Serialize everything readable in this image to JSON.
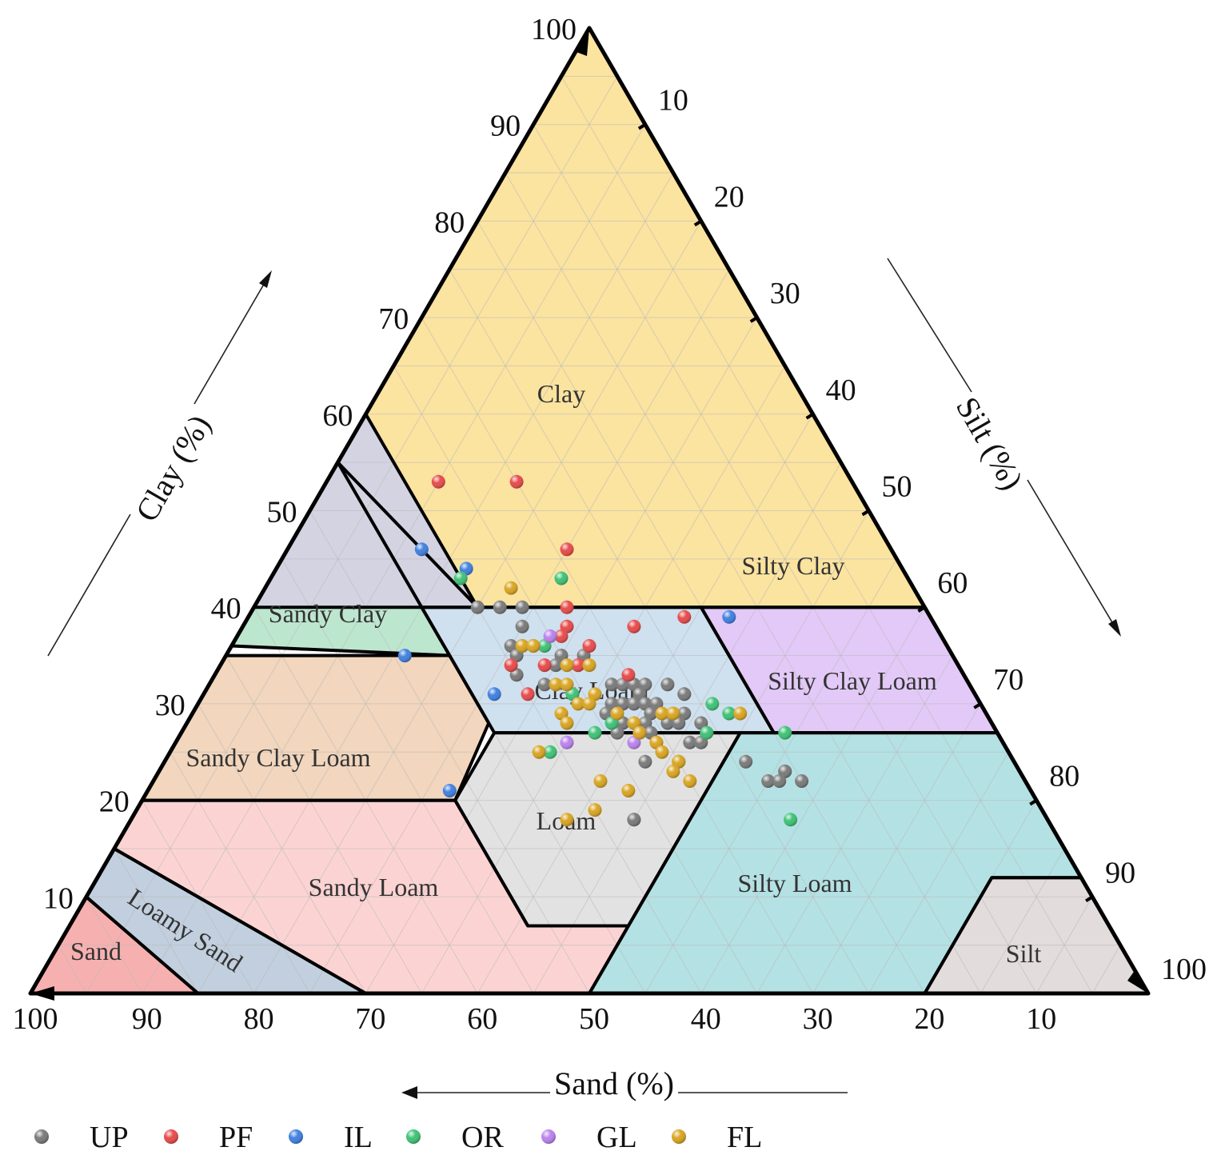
{
  "chart_data": {
    "type": "scatter",
    "subtype": "ternary-soil-texture",
    "axes": {
      "clay": {
        "label": "Clay (%)",
        "ticks": [
          "10",
          "20",
          "30",
          "40",
          "50",
          "60",
          "70",
          "80",
          "90",
          "100"
        ]
      },
      "silt": {
        "label": "Silt (%)",
        "ticks": [
          "10",
          "20",
          "30",
          "40",
          "50",
          "60",
          "70",
          "80",
          "90",
          "100"
        ]
      },
      "sand": {
        "label": "Sand (%)",
        "ticks": [
          "100",
          "90",
          "80",
          "70",
          "60",
          "50",
          "40",
          "30",
          "20",
          "10"
        ]
      }
    },
    "grid": true,
    "legend_position": "bottom",
    "regions": [
      {
        "name": "Clay",
        "color": "#fbe3a0",
        "polygon": [
          [
            55,
            45,
            0
          ],
          [
            100,
            0,
            0
          ],
          [
            40,
            0,
            60
          ],
          [
            40,
            15,
            45
          ],
          [
            40,
            40,
            20
          ]
        ]
      },
      {
        "name": "Sandy Clay",
        "color": "#bde6cf",
        "polygon": [
          [
            35,
            45,
            20
          ],
          [
            36,
            64,
            0
          ],
          [
            55,
            45,
            0
          ],
          [
            36,
            45,
            19
          ]
        ]
      },
      {
        "name": "Silty Clay",
        "color": "#d4d3e2",
        "polygon": [
          [
            40,
            40,
            20
          ],
          [
            60,
            40,
            0
          ],
          [
            40,
            60,
            0
          ]
        ]
      },
      {
        "name": "Sandy Clay Loam",
        "color": "#f2d6bd",
        "polygon": [
          [
            20,
            80,
            0
          ],
          [
            35,
            65,
            0
          ],
          [
            35,
            45,
            20
          ],
          [
            28,
            45,
            27
          ],
          [
            20,
            52,
            28
          ]
        ]
      },
      {
        "name": "Clay Loam",
        "color": "#cfe0ef",
        "polygon": [
          [
            27,
            45,
            28
          ],
          [
            40,
            45,
            15
          ],
          [
            40,
            20,
            40
          ],
          [
            27,
            20,
            53
          ]
        ]
      },
      {
        "name": "Silty Clay Loam",
        "color": "#e2c9f7",
        "polygon": [
          [
            27,
            20,
            53
          ],
          [
            40,
            20,
            40
          ],
          [
            40,
            0,
            60
          ],
          [
            27,
            0,
            73
          ]
        ]
      },
      {
        "name": "Loam",
        "color": "#e2e2e2",
        "polygon": [
          [
            27,
            45,
            28
          ],
          [
            27,
            23,
            50
          ],
          [
            7,
            43,
            50
          ],
          [
            7,
            52,
            41
          ],
          [
            20,
            52,
            28
          ]
        ]
      },
      {
        "name": "Silty Loam",
        "color": "#b4e1e4",
        "polygon": [
          [
            27,
            23,
            50
          ],
          [
            27,
            0,
            73
          ],
          [
            12,
            0,
            88
          ],
          [
            12,
            8,
            80
          ],
          [
            0,
            20,
            80
          ],
          [
            0,
            50,
            50
          ],
          [
            7,
            43,
            50
          ]
        ]
      },
      {
        "name": "Silt",
        "color": "#e2dcdc",
        "polygon": [
          [
            12,
            8,
            80
          ],
          [
            12,
            0,
            88
          ],
          [
            0,
            0,
            100
          ],
          [
            0,
            20,
            80
          ]
        ]
      },
      {
        "name": "Sandy Loam",
        "color": "#fcd3d3",
        "polygon": [
          [
            20,
            80,
            0
          ],
          [
            20,
            52,
            28
          ],
          [
            7,
            52,
            41
          ],
          [
            7,
            43,
            50
          ],
          [
            0,
            50,
            50
          ],
          [
            0,
            70,
            30
          ],
          [
            15,
            85,
            0
          ]
        ]
      },
      {
        "name": "Loamy Sand",
        "color": "#c1cfde",
        "polygon": [
          [
            15,
            85,
            0
          ],
          [
            0,
            70,
            30
          ],
          [
            0,
            85,
            15
          ],
          [
            10,
            90,
            0
          ]
        ]
      },
      {
        "name": "Sand",
        "color": "#f6b0b0",
        "polygon": [
          [
            10,
            90,
            0
          ],
          [
            0,
            85,
            15
          ],
          [
            0,
            100,
            0
          ]
        ]
      }
    ],
    "region_labels": [
      "Clay",
      "Sandy Clay",
      "Silty Clay",
      "Sandy Clay Loam",
      "Clay Loam",
      "Silty Clay Loam",
      "Loam",
      "Silty Loam",
      "Silt",
      "Sandy Loam",
      "Loamy Sand",
      "Sand"
    ],
    "series": [
      {
        "name": "UP",
        "color": "#7a7a7a",
        "points": [
          [
            40,
            40
          ],
          [
            40,
            38
          ],
          [
            40,
            36
          ],
          [
            38,
            37
          ],
          [
            36,
            39
          ],
          [
            36,
            38
          ],
          [
            36,
            37
          ],
          [
            35,
            39
          ],
          [
            35,
            35
          ],
          [
            35,
            33
          ],
          [
            34,
            36
          ],
          [
            34,
            34
          ],
          [
            33,
            40
          ],
          [
            32,
            38
          ],
          [
            32,
            32
          ],
          [
            32,
            31
          ],
          [
            32,
            30
          ],
          [
            32,
            29
          ],
          [
            32,
            27
          ],
          [
            31,
            30
          ],
          [
            31,
            26
          ],
          [
            31,
            26
          ],
          [
            30,
            33
          ],
          [
            30,
            32
          ],
          [
            30,
            31
          ],
          [
            30,
            30
          ],
          [
            30,
            29
          ],
          [
            29,
            34
          ],
          [
            29,
            30
          ],
          [
            29,
            28
          ],
          [
            29,
            27
          ],
          [
            28,
            33
          ],
          [
            28,
            31
          ],
          [
            28,
            29
          ],
          [
            28,
            28
          ],
          [
            28,
            26
          ],
          [
            27,
            34
          ],
          [
            27,
            32
          ],
          [
            27,
            31
          ],
          [
            27,
            26
          ],
          [
            26,
            28
          ],
          [
            26,
            27
          ],
          [
            24,
            33
          ],
          [
            24,
            30
          ],
          [
            24,
            24
          ],
          [
            23,
            21
          ],
          [
            23,
            21
          ],
          [
            22,
            23
          ],
          [
            22,
            22
          ],
          [
            22,
            20
          ],
          [
            18,
            37
          ],
          [
            18,
            37
          ]
        ]
      },
      {
        "name": "PF",
        "color": "#e84a4a",
        "points": [
          [
            53,
            30
          ],
          [
            53,
            37
          ],
          [
            46,
            29
          ],
          [
            40,
            32
          ],
          [
            39,
            22
          ],
          [
            38,
            33
          ],
          [
            38,
            27
          ],
          [
            37,
            34
          ],
          [
            36,
            32
          ],
          [
            34,
            40
          ],
          [
            34,
            37
          ],
          [
            34,
            34
          ],
          [
            33,
            30
          ],
          [
            31,
            40
          ]
        ]
      },
      {
        "name": "IL",
        "color": "#3f80e0",
        "points": [
          [
            46,
            42
          ],
          [
            44,
            39
          ],
          [
            39,
            18
          ],
          [
            35,
            49
          ],
          [
            31,
            43
          ],
          [
            21,
            52
          ]
        ]
      },
      {
        "name": "OR",
        "color": "#3ec276",
        "points": [
          [
            43,
            31
          ],
          [
            43,
            40
          ],
          [
            36,
            36
          ],
          [
            31,
            36
          ],
          [
            30,
            24
          ],
          [
            29,
            23
          ],
          [
            28,
            34
          ],
          [
            27,
            36
          ],
          [
            27,
            26
          ],
          [
            27,
            19
          ],
          [
            25,
            41
          ],
          [
            18,
            23
          ]
        ]
      },
      {
        "name": "GL",
        "color": "#bb82ee",
        "points": [
          [
            37,
            35
          ],
          [
            26,
            39
          ],
          [
            26,
            33
          ]
        ]
      },
      {
        "name": "FL",
        "color": "#d9a521",
        "points": [
          [
            42,
            36
          ],
          [
            36,
            38
          ],
          [
            36,
            37
          ],
          [
            34,
            35
          ],
          [
            34,
            33
          ],
          [
            32,
            37
          ],
          [
            32,
            36
          ],
          [
            31,
            34
          ],
          [
            30,
            36
          ],
          [
            30,
            35
          ],
          [
            29,
            38
          ],
          [
            29,
            33
          ],
          [
            29,
            29
          ],
          [
            29,
            28
          ],
          [
            29,
            22
          ],
          [
            28,
            38
          ],
          [
            28,
            32
          ],
          [
            27,
            32
          ],
          [
            26,
            31
          ],
          [
            26,
            31
          ],
          [
            25,
            42
          ],
          [
            25,
            31
          ],
          [
            24,
            30
          ],
          [
            23,
            31
          ],
          [
            22,
            38
          ],
          [
            22,
            30
          ],
          [
            21,
            36
          ],
          [
            19,
            40
          ],
          [
            18,
            43
          ]
        ]
      }
    ]
  }
}
